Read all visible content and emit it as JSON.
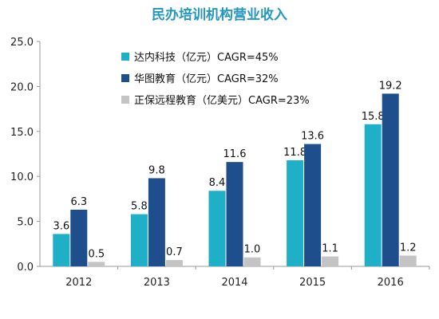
{
  "chart_data": {
    "type": "bar",
    "title": "民办培训机构营业收入",
    "categories": [
      "2012",
      "2013",
      "2014",
      "2015",
      "2016"
    ],
    "series": [
      {
        "name": "达内科技（亿元）CAGR=45%",
        "color": "#1fb0c8",
        "values": [
          3.6,
          5.8,
          8.4,
          11.8,
          15.8
        ]
      },
      {
        "name": "华图教育（亿元）CAGR=32%",
        "color": "#1f4e8c",
        "values": [
          6.3,
          9.8,
          11.6,
          13.6,
          19.2
        ]
      },
      {
        "name": "正保远程教育（亿美元）CAGR=23%",
        "color": "#c4c4c4",
        "values": [
          0.5,
          0.7,
          1.0,
          1.1,
          1.2
        ]
      }
    ],
    "data_labels": [
      [
        "3.6",
        "5.8",
        "8.4",
        "11.8",
        "15.8"
      ],
      [
        "6.3",
        "9.8",
        "11.6",
        "13.6",
        "19.2"
      ],
      [
        "0.5",
        "0.7",
        "1.0",
        "1.1",
        "1.2"
      ]
    ],
    "ylim": [
      0,
      25
    ],
    "yticks": [
      "0.0",
      "5.0",
      "10.0",
      "15.0",
      "20.0",
      "25.0"
    ],
    "grid": false,
    "legend_position": "top-left"
  }
}
